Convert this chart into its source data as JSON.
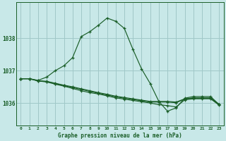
{
  "title": "Graphe pression niveau de la mer (hPa)",
  "background_color": "#c8e8e8",
  "grid_color": "#a0c8c8",
  "line_color": "#1a5e28",
  "x_labels": [
    "0",
    "1",
    "2",
    "3",
    "4",
    "5",
    "6",
    "7",
    "8",
    "9",
    "10",
    "11",
    "12",
    "13",
    "14",
    "15",
    "16",
    "17",
    "18",
    "19",
    "20",
    "21",
    "22",
    "23"
  ],
  "yticks": [
    1036,
    1037,
    1038
  ],
  "ylim": [
    1035.3,
    1039.1
  ],
  "xlim": [
    -0.5,
    23.5
  ],
  "series": [
    [
      1036.75,
      1036.75,
      1036.7,
      1036.8,
      1037.0,
      1037.15,
      1037.4,
      1038.05,
      1038.2,
      1038.4,
      1038.62,
      1038.52,
      1038.3,
      1037.65,
      1037.05,
      1036.6,
      1036.05,
      1035.75,
      1035.85,
      1036.15,
      1036.2,
      1036.2,
      1036.2,
      1035.95
    ],
    [
      1036.75,
      1036.75,
      1036.68,
      1036.65,
      1036.58,
      1036.52,
      1036.45,
      1036.38,
      1036.32,
      1036.28,
      1036.22,
      1036.16,
      1036.12,
      1036.08,
      1036.04,
      1036.0,
      1035.95,
      1035.92,
      1035.88,
      1036.1,
      1036.13,
      1036.13,
      1036.13,
      1035.93
    ],
    [
      1036.75,
      1036.75,
      1036.68,
      1036.66,
      1036.6,
      1036.54,
      1036.48,
      1036.42,
      1036.36,
      1036.3,
      1036.25,
      1036.19,
      1036.15,
      1036.11,
      1036.07,
      1036.03,
      1036.03,
      1036.03,
      1036.01,
      1036.12,
      1036.15,
      1036.15,
      1036.15,
      1035.95
    ],
    [
      1036.75,
      1036.75,
      1036.69,
      1036.67,
      1036.61,
      1036.55,
      1036.5,
      1036.44,
      1036.38,
      1036.32,
      1036.27,
      1036.21,
      1036.17,
      1036.13,
      1036.09,
      1036.05,
      1036.05,
      1036.05,
      1036.03,
      1036.13,
      1036.16,
      1036.16,
      1036.16,
      1035.96
    ]
  ]
}
